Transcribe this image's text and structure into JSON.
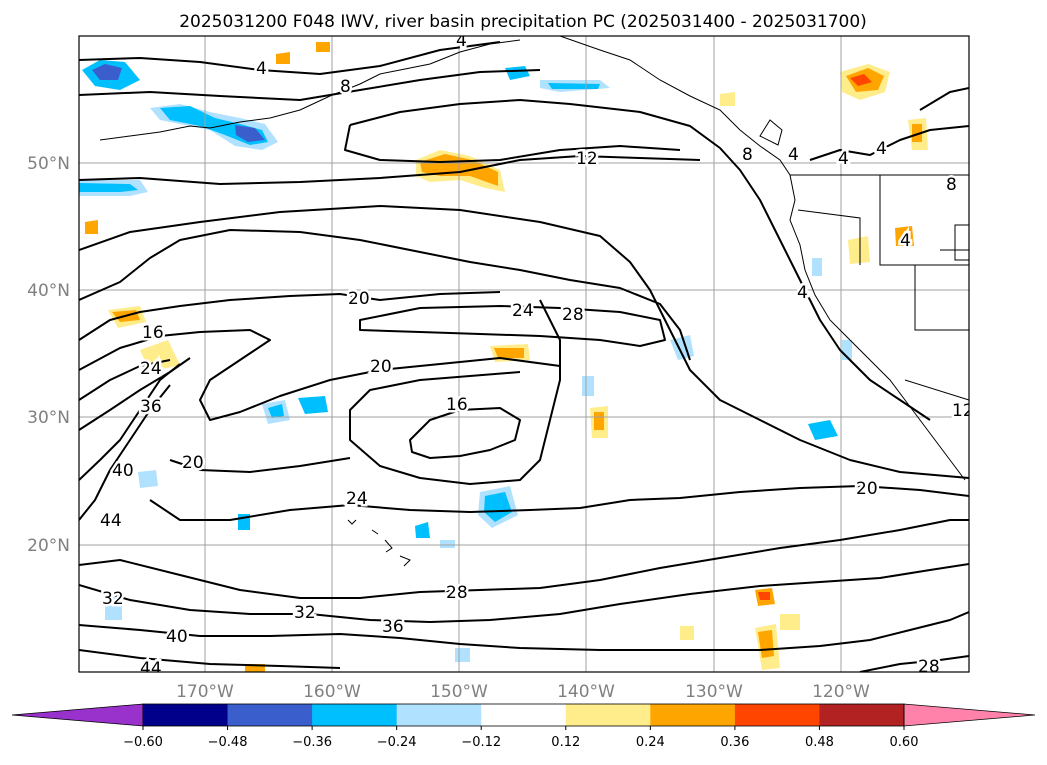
{
  "title": "2025031200 F048 IWV, river basin precipitation PC (2025031400 - 2025031700)",
  "lat_labels": [
    "50°N",
    "40°N",
    "30°N",
    "20°N"
  ],
  "lon_labels": [
    "170°W",
    "160°W",
    "150°W",
    "140°W",
    "130°W",
    "120°W"
  ],
  "colorbar": {
    "colors": [
      "#9932cc",
      "#00008b",
      "#3a5fcd",
      "#00bfff",
      "#b0e2ff",
      "#ffffff",
      "#ffec8b",
      "#ffa500",
      "#ff4500",
      "#b22222",
      "#ff82ab"
    ],
    "tick_labels": [
      "−0.60",
      "−0.48",
      "−0.36",
      "−0.24",
      "−0.12",
      "0.12",
      "0.24",
      "0.36",
      "0.48",
      "0.60"
    ]
  },
  "contour_labels": [
    {
      "text": "4",
      "id": "c4a"
    },
    {
      "text": "8",
      "id": "c8a"
    },
    {
      "text": "4",
      "id": "c4b"
    },
    {
      "text": "12",
      "id": "c12"
    },
    {
      "text": "4",
      "id": "c4c"
    },
    {
      "text": "4",
      "id": "c4d"
    },
    {
      "text": "8",
      "id": "c8b"
    },
    {
      "text": "4",
      "id": "c4e"
    },
    {
      "text": "8",
      "id": "c8c"
    },
    {
      "text": "4",
      "id": "c4f"
    },
    {
      "text": "20",
      "id": "c20a"
    },
    {
      "text": "24",
      "id": "c24a"
    },
    {
      "text": "28",
      "id": "c28a"
    },
    {
      "text": "16",
      "id": "c16a"
    },
    {
      "text": "20",
      "id": "c20b"
    },
    {
      "text": "24",
      "id": "c24b"
    },
    {
      "text": "36",
      "id": "c36a"
    },
    {
      "text": "16",
      "id": "c16b"
    },
    {
      "text": "20",
      "id": "c20c"
    },
    {
      "text": "40",
      "id": "c40a"
    },
    {
      "text": "44",
      "id": "c44a"
    },
    {
      "text": "24",
      "id": "c24c"
    },
    {
      "text": "20",
      "id": "c20d"
    },
    {
      "text": "28",
      "id": "c28b"
    },
    {
      "text": "32",
      "id": "c32a"
    },
    {
      "text": "32",
      "id": "c32b"
    },
    {
      "text": "36",
      "id": "c36b"
    },
    {
      "text": "40",
      "id": "c40b"
    },
    {
      "text": "44",
      "id": "c44b"
    },
    {
      "text": "28",
      "id": "c28c"
    },
    {
      "text": "12",
      "id": "c12b"
    },
    {
      "text": "4",
      "id": "c4g"
    }
  ]
}
